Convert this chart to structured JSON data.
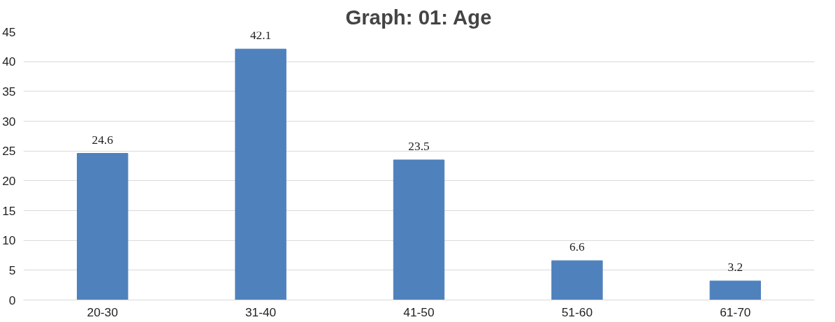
{
  "chart_data": {
    "type": "bar",
    "title": "Graph: 01: Age",
    "categories": [
      "20-30",
      "31-40",
      "41-50",
      "51-60",
      "61-70"
    ],
    "values": [
      24.6,
      42.1,
      23.5,
      6.6,
      3.2
    ],
    "color": "#4f81bd",
    "ylim": [
      0,
      45
    ],
    "yticks": [
      0,
      5,
      10,
      15,
      20,
      25,
      30,
      35,
      40,
      45
    ],
    "grid": "y",
    "data_labels": true
  }
}
